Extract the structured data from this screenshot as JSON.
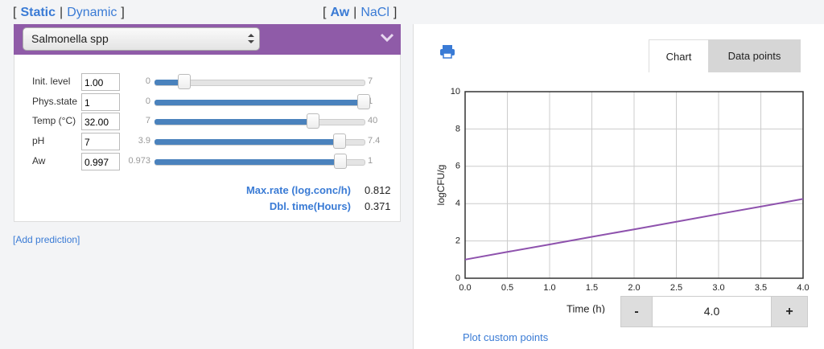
{
  "mode_toggle": {
    "open": "[",
    "options": [
      "Static",
      "Dynamic"
    ],
    "separator": "|",
    "close": "]"
  },
  "factor_toggle": {
    "open": "[",
    "options": [
      "Aw",
      "NaCl"
    ],
    "separator": "|",
    "close": "]"
  },
  "organism": "Salmonella spp",
  "parameters": [
    {
      "label": "Init. level",
      "input": "1.00",
      "min": 0,
      "max": 7,
      "value": 1
    },
    {
      "label": "Phys.state",
      "input": "1",
      "min": 0,
      "max": 1,
      "value": 1
    },
    {
      "label": "Temp (°C)",
      "input": "32.00",
      "min": 7,
      "max": 40,
      "value": 32
    },
    {
      "label": "pH",
      "input": "7",
      "min": 3.9,
      "max": 7.4,
      "value": 7
    },
    {
      "label": "Aw",
      "input": "0.997",
      "min": 0.973,
      "max": 1,
      "value": 0.997
    }
  ],
  "results": [
    {
      "label": "Max.rate (log.conc/h)",
      "value": "0.812"
    },
    {
      "label": "Dbl. time(Hours)",
      "value": "0.371"
    }
  ],
  "add_prediction": "[Add prediction]",
  "tabs": [
    "Chart",
    "Data points"
  ],
  "chart_data": {
    "type": "line",
    "x_label": "Time (h)",
    "y_label": "logCFU/g",
    "x": [
      0,
      0.5,
      1,
      1.5,
      2,
      2.5,
      3,
      3.5,
      4
    ],
    "series": [
      {
        "color": "#8e52ad",
        "values": [
          1.0,
          1.41,
          1.81,
          2.22,
          2.62,
          3.03,
          3.44,
          3.84,
          4.25
        ]
      }
    ],
    "xlim": [
      0,
      4
    ],
    "ylim": [
      0,
      10
    ],
    "xticks": [
      {
        "value": 0,
        "label": "0.0"
      },
      0.5,
      {
        "value": 1,
        "label": "1.0"
      },
      1.5,
      {
        "value": 2,
        "label": "2.0"
      },
      2.5,
      {
        "value": 3,
        "label": "3.0"
      },
      3.5,
      {
        "value": 4,
        "label": "4.0"
      }
    ],
    "yticks": [
      0,
      2,
      4,
      6,
      8,
      10
    ],
    "grid": true
  },
  "time_stepper": {
    "decrement": "-",
    "value": "4.0",
    "increment": "+"
  },
  "plot_custom_points": "Plot custom points"
}
